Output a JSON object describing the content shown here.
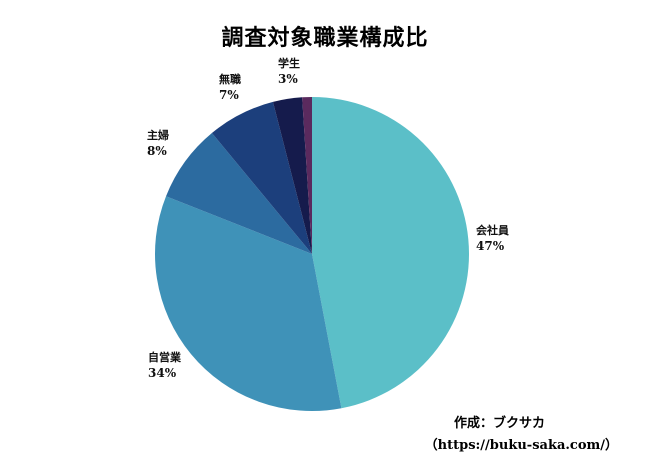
{
  "chart_data": {
    "type": "pie",
    "title": "調査対象職業構成比",
    "slices": [
      {
        "label": "会社員",
        "percent_label": "47%",
        "value": 47,
        "color": "#5bbfc8"
      },
      {
        "label": "自営業",
        "percent_label": "34%",
        "value": 34,
        "color": "#3f92b8"
      },
      {
        "label": "主婦",
        "percent_label": "8%",
        "value": 8,
        "color": "#2c6ba0"
      },
      {
        "label": "無職",
        "percent_label": "7%",
        "value": 7,
        "color": "#1c3f7c"
      },
      {
        "label": "学生",
        "percent_label": "3%",
        "value": 3,
        "color": "#151b4c"
      },
      {
        "label": "",
        "percent_label": "",
        "value": 1,
        "color": "#5a2a5e"
      }
    ],
    "start_angle_deg": 0,
    "direction": "clockwise"
  },
  "credit": {
    "line1": "作成：ブクサカ",
    "line2": "（https://buku-saka.com/）"
  }
}
